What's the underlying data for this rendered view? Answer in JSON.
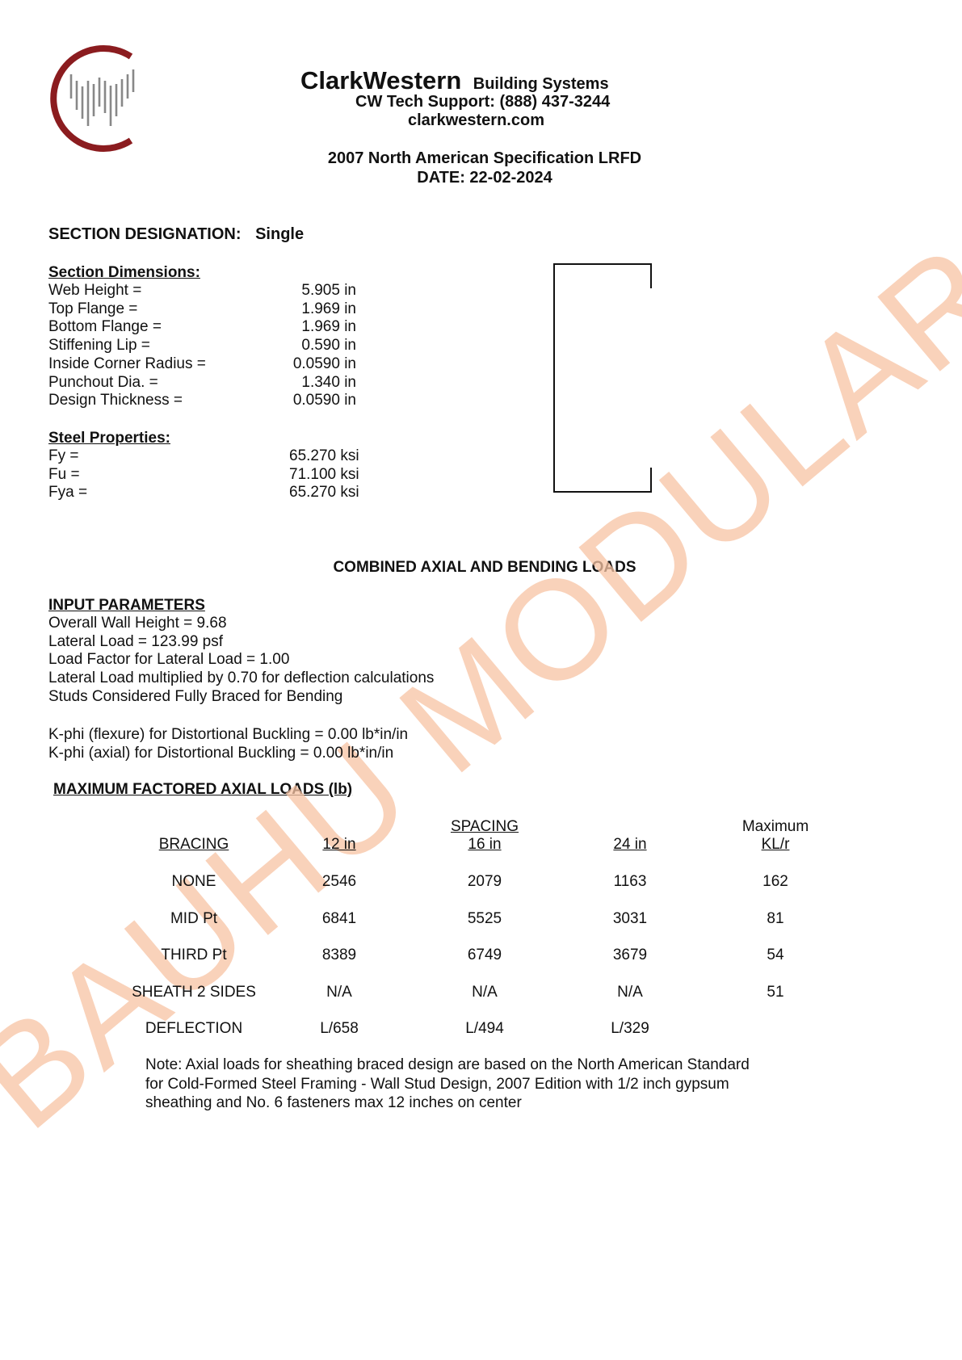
{
  "header": {
    "company": "ClarkWestern",
    "division": "Building Systems",
    "support": "CW Tech Support: (888) 437-3244",
    "website": "clarkwestern.com",
    "specification": "2007 North American Specification LRFD",
    "date": "DATE: 22-02-2024",
    "logo_colors": {
      "ring": "#8b1c1f",
      "bars": "#888888"
    }
  },
  "section_designation": {
    "label": "SECTION DESIGNATION:",
    "value": "Single"
  },
  "section_dimensions": {
    "title": "Section Dimensions:",
    "rows": [
      {
        "label": "Web Height =",
        "value": "5.905 in"
      },
      {
        "label": "Top Flange =",
        "value": "1.969 in"
      },
      {
        "label": "Bottom Flange =",
        "value": "1.969 in"
      },
      {
        "label": "Stiffening Lip =",
        "value": "0.590 in"
      },
      {
        "label": "Inside Corner Radius =",
        "value": "0.0590 in"
      },
      {
        "label": "Punchout Dia. =",
        "value": "1.340 in"
      },
      {
        "label": "Design Thickness =",
        "value": "0.0590 in"
      }
    ]
  },
  "steel_properties": {
    "title": "Steel Properties:",
    "rows": [
      {
        "label": "Fy =",
        "value": "65.270 ksi"
      },
      {
        "label": "Fu =",
        "value": "71.100 ksi"
      },
      {
        "label": "Fya =",
        "value": "65.270 ksi"
      }
    ]
  },
  "combined_title": "COMBINED AXIAL AND BENDING LOADS",
  "input_parameters": {
    "title": "INPUT PARAMETERS",
    "lines": [
      "Overall Wall Height = 9.68",
      "Lateral Load = 123.99 psf",
      "Load Factor for Lateral Load = 1.00",
      "Lateral Load multiplied by 0.70 for deflection calculations",
      "Studs Considered Fully Braced for Bending"
    ],
    "kphi": [
      "K-phi (flexure) for Distortional Buckling =  0.00  lb*in/in",
      "K-phi (axial) for Distortional Buckling =  0.00  lb*in/in"
    ]
  },
  "loads_table": {
    "title": "MAXIMUM FACTORED AXIAL LOADS (lb)",
    "spacing_label": "SPACING",
    "max_label": "Maximum",
    "headers": [
      "BRACING",
      "12 in",
      "16 in",
      "24 in",
      "KL/r"
    ],
    "rows": [
      [
        "NONE",
        "2546",
        "2079",
        "1163",
        "162"
      ],
      [
        "MID Pt",
        "6841",
        "5525",
        "3031",
        "81"
      ],
      [
        "THIRD Pt",
        "8389",
        "6749",
        "3679",
        "54"
      ],
      [
        "SHEATH 2 SIDES",
        "N/A",
        "N/A",
        "N/A",
        "51"
      ],
      [
        "DEFLECTION",
        "L/658",
        "L/494",
        "L/329",
        ""
      ]
    ],
    "note": [
      "Note: Axial loads for sheathing braced design are based on the North American Standard",
      "for Cold-Formed Steel Framing - Wall Stud Design, 2007 Edition with 1/2 inch gypsum",
      "sheathing and No. 6 fasteners max 12 inches on center"
    ]
  },
  "watermark": {
    "text": "BAUHU MODULAR",
    "color": "#f8c4a4"
  }
}
